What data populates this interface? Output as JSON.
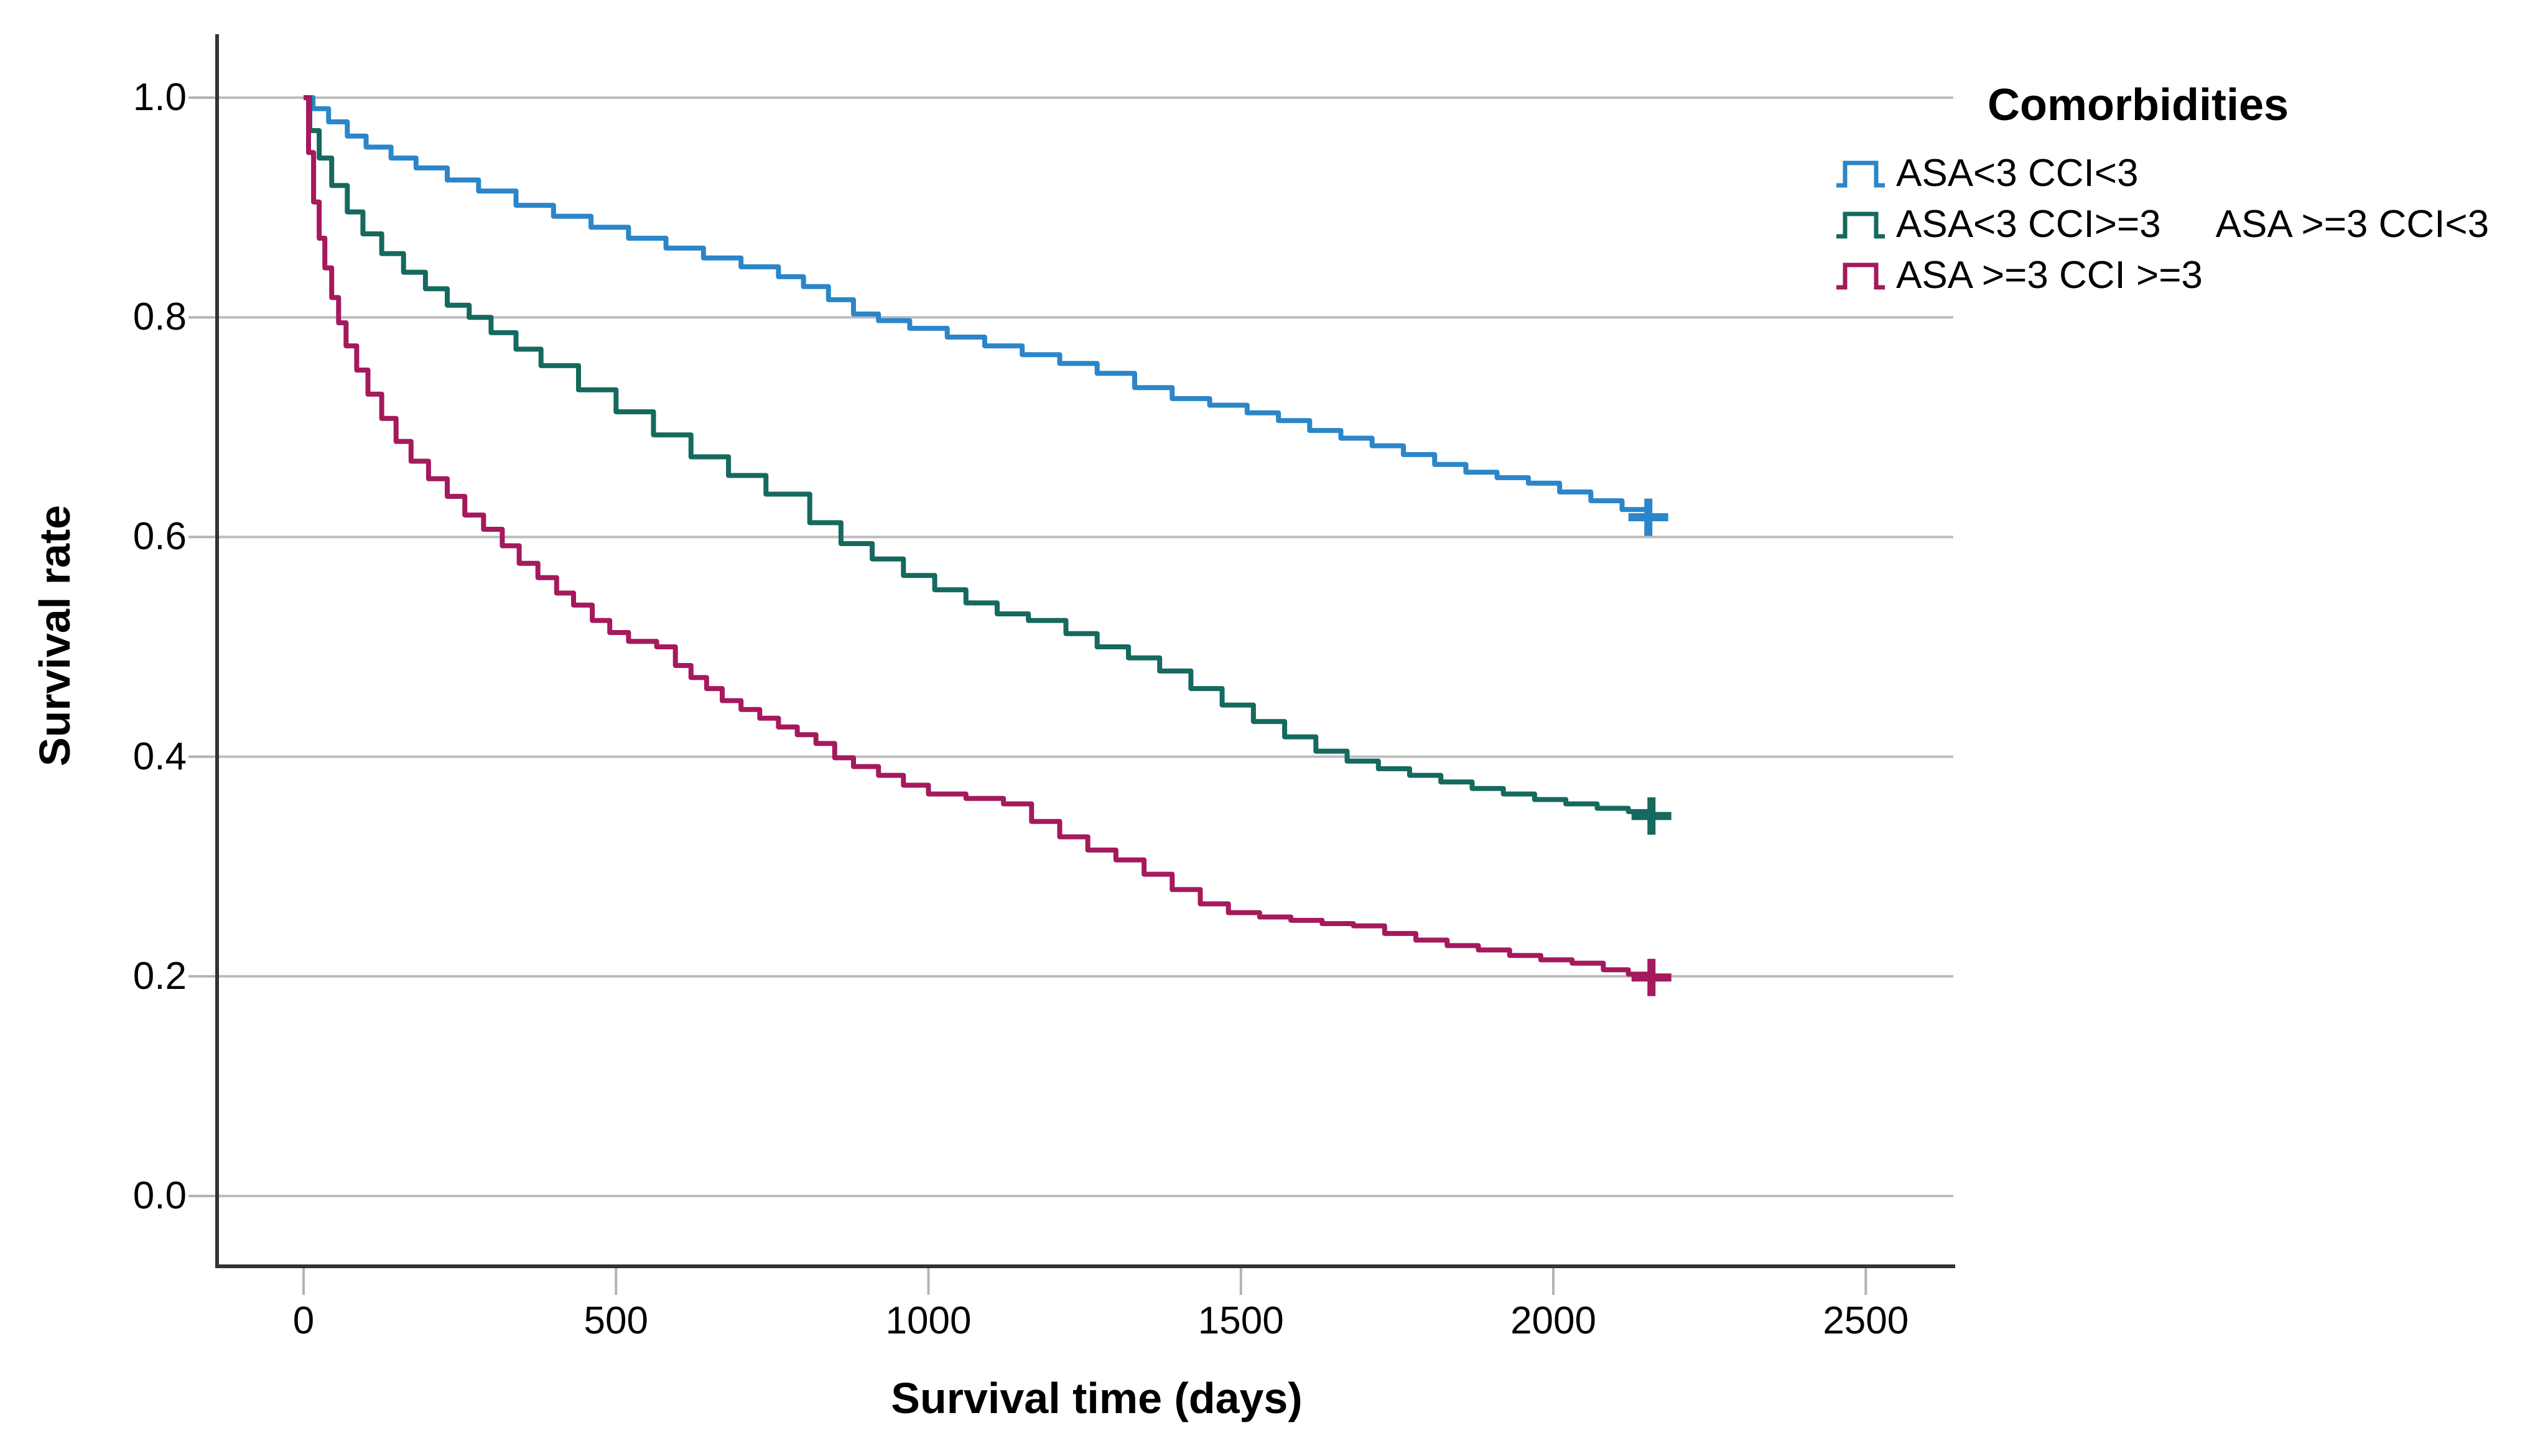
{
  "chart_data": {
    "type": "line",
    "subtype": "kaplan-meier-step",
    "title": "",
    "xlabel": "Survival time (days)",
    "ylabel": "Survival rate",
    "xlim": [
      0,
      2640
    ],
    "ylim": [
      0.0,
      1.0
    ],
    "grid": "horizontal",
    "legend_position": "top-right",
    "legend_title": "Comorbidities",
    "x_ticks": [
      0,
      500,
      1000,
      1500,
      2000,
      2500
    ],
    "x_tick_labels": [
      "0",
      "500",
      "1000",
      "1500",
      "2000",
      "2500"
    ],
    "y_ticks": [
      1.0,
      0.8,
      0.6,
      0.4,
      0.2,
      0.0
    ],
    "y_tick_labels": [
      "1.0",
      "0.8",
      "0.6",
      "0.4",
      "0.2",
      "0.0"
    ],
    "unplotted_group_label": "ASA >=3 CCI<3",
    "colors": {
      "grid": "#bcbcbc",
      "tick": "#b3b3b3",
      "axis": "#333333",
      "text": "#000000"
    },
    "series": [
      {
        "name": "ASA<3 CCI<3",
        "color": "#2b86c9",
        "censor_day": 2152,
        "points": [
          [
            0,
            1.0
          ],
          [
            15,
            0.99
          ],
          [
            40,
            0.978
          ],
          [
            70,
            0.965
          ],
          [
            100,
            0.955
          ],
          [
            140,
            0.945
          ],
          [
            180,
            0.936
          ],
          [
            230,
            0.925
          ],
          [
            280,
            0.915
          ],
          [
            340,
            0.902
          ],
          [
            400,
            0.892
          ],
          [
            460,
            0.882
          ],
          [
            520,
            0.872
          ],
          [
            580,
            0.863
          ],
          [
            640,
            0.854
          ],
          [
            700,
            0.846
          ],
          [
            760,
            0.837
          ],
          [
            800,
            0.828
          ],
          [
            840,
            0.816
          ],
          [
            880,
            0.803
          ],
          [
            920,
            0.797
          ],
          [
            970,
            0.79
          ],
          [
            1030,
            0.782
          ],
          [
            1090,
            0.774
          ],
          [
            1150,
            0.766
          ],
          [
            1210,
            0.758
          ],
          [
            1270,
            0.749
          ],
          [
            1330,
            0.736
          ],
          [
            1390,
            0.726
          ],
          [
            1450,
            0.72
          ],
          [
            1510,
            0.713
          ],
          [
            1560,
            0.706
          ],
          [
            1610,
            0.697
          ],
          [
            1660,
            0.69
          ],
          [
            1710,
            0.683
          ],
          [
            1760,
            0.675
          ],
          [
            1810,
            0.666
          ],
          [
            1860,
            0.659
          ],
          [
            1910,
            0.654
          ],
          [
            1960,
            0.649
          ],
          [
            2010,
            0.641
          ],
          [
            2060,
            0.633
          ],
          [
            2110,
            0.625
          ],
          [
            2152,
            0.618
          ]
        ]
      },
      {
        "name": "ASA<3 CCI>=3",
        "color": "#15695e",
        "censor_day": 2157,
        "points": [
          [
            0,
            1.0
          ],
          [
            10,
            0.97
          ],
          [
            25,
            0.945
          ],
          [
            45,
            0.92
          ],
          [
            70,
            0.896
          ],
          [
            95,
            0.876
          ],
          [
            125,
            0.858
          ],
          [
            160,
            0.841
          ],
          [
            195,
            0.826
          ],
          [
            230,
            0.811
          ],
          [
            265,
            0.8
          ],
          [
            300,
            0.786
          ],
          [
            340,
            0.771
          ],
          [
            380,
            0.756
          ],
          [
            440,
            0.734
          ],
          [
            500,
            0.714
          ],
          [
            560,
            0.693
          ],
          [
            620,
            0.673
          ],
          [
            680,
            0.656
          ],
          [
            740,
            0.639
          ],
          [
            810,
            0.613
          ],
          [
            860,
            0.594
          ],
          [
            910,
            0.58
          ],
          [
            960,
            0.565
          ],
          [
            1010,
            0.552
          ],
          [
            1060,
            0.54
          ],
          [
            1110,
            0.53
          ],
          [
            1160,
            0.524
          ],
          [
            1220,
            0.512
          ],
          [
            1270,
            0.5
          ],
          [
            1320,
            0.49
          ],
          [
            1370,
            0.478
          ],
          [
            1420,
            0.462
          ],
          [
            1470,
            0.447
          ],
          [
            1520,
            0.432
          ],
          [
            1570,
            0.418
          ],
          [
            1620,
            0.405
          ],
          [
            1670,
            0.396
          ],
          [
            1720,
            0.389
          ],
          [
            1770,
            0.383
          ],
          [
            1820,
            0.377
          ],
          [
            1870,
            0.371
          ],
          [
            1920,
            0.366
          ],
          [
            1970,
            0.361
          ],
          [
            2020,
            0.357
          ],
          [
            2070,
            0.353
          ],
          [
            2120,
            0.35
          ],
          [
            2157,
            0.346
          ]
        ]
      },
      {
        "name": "ASA >=3 CCI >=3",
        "color": "#a5195d",
        "censor_day": 2157,
        "points": [
          [
            0,
            1.0
          ],
          [
            8,
            0.95
          ],
          [
            16,
            0.905
          ],
          [
            25,
            0.872
          ],
          [
            34,
            0.845
          ],
          [
            45,
            0.818
          ],
          [
            56,
            0.795
          ],
          [
            68,
            0.774
          ],
          [
            85,
            0.752
          ],
          [
            103,
            0.73
          ],
          [
            125,
            0.708
          ],
          [
            148,
            0.687
          ],
          [
            172,
            0.669
          ],
          [
            200,
            0.653
          ],
          [
            230,
            0.637
          ],
          [
            258,
            0.62
          ],
          [
            288,
            0.607
          ],
          [
            318,
            0.592
          ],
          [
            345,
            0.576
          ],
          [
            375,
            0.563
          ],
          [
            405,
            0.549
          ],
          [
            432,
            0.538
          ],
          [
            462,
            0.524
          ],
          [
            490,
            0.513
          ],
          [
            520,
            0.505
          ],
          [
            565,
            0.5
          ],
          [
            595,
            0.483
          ],
          [
            620,
            0.472
          ],
          [
            645,
            0.462
          ],
          [
            670,
            0.451
          ],
          [
            700,
            0.443
          ],
          [
            730,
            0.435
          ],
          [
            760,
            0.427
          ],
          [
            790,
            0.42
          ],
          [
            820,
            0.412
          ],
          [
            850,
            0.399
          ],
          [
            880,
            0.391
          ],
          [
            920,
            0.383
          ],
          [
            960,
            0.374
          ],
          [
            1000,
            0.366
          ],
          [
            1060,
            0.362
          ],
          [
            1120,
            0.357
          ],
          [
            1165,
            0.341
          ],
          [
            1210,
            0.327
          ],
          [
            1255,
            0.315
          ],
          [
            1300,
            0.306
          ],
          [
            1345,
            0.293
          ],
          [
            1390,
            0.279
          ],
          [
            1435,
            0.266
          ],
          [
            1480,
            0.258
          ],
          [
            1530,
            0.254
          ],
          [
            1580,
            0.251
          ],
          [
            1630,
            0.248
          ],
          [
            1680,
            0.246
          ],
          [
            1730,
            0.239
          ],
          [
            1780,
            0.233
          ],
          [
            1830,
            0.228
          ],
          [
            1880,
            0.224
          ],
          [
            1930,
            0.219
          ],
          [
            1980,
            0.215
          ],
          [
            2030,
            0.212
          ],
          [
            2080,
            0.206
          ],
          [
            2120,
            0.202
          ],
          [
            2157,
            0.199
          ]
        ]
      }
    ]
  }
}
